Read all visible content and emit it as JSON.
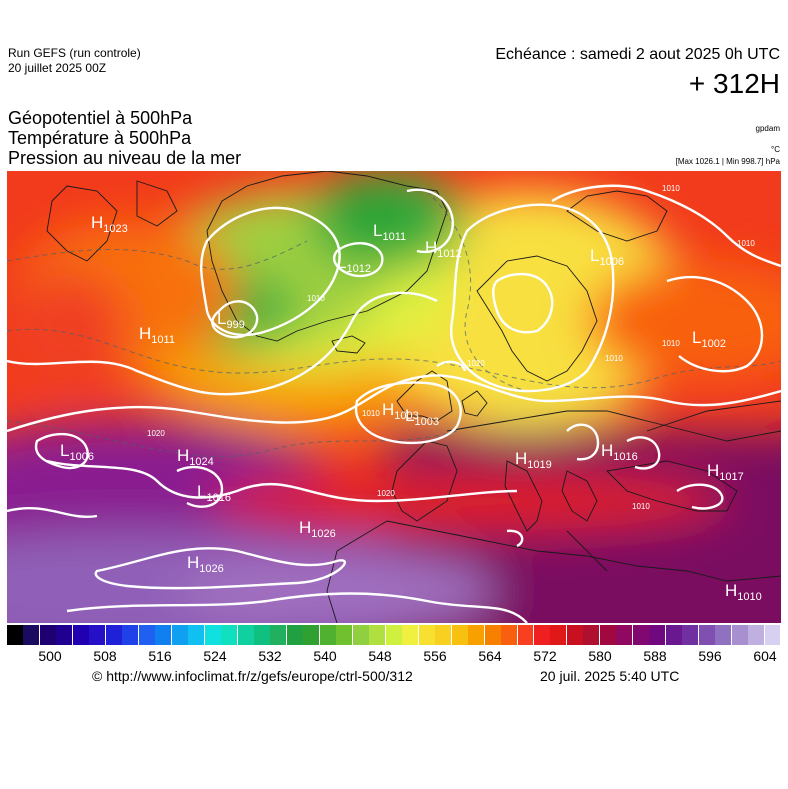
{
  "header": {
    "run_title": "Run GEFS (run controle)",
    "run_date": "20 juillet 2025 00Z",
    "valid_time": "Echéance : samedi 2 aout 2025 0h UTC",
    "lead_time": "+ 312H"
  },
  "params": [
    "Géopotentiel à 500hPa",
    "Température à 500hPa",
    "Pression au niveau de la mer"
  ],
  "units": {
    "geopotential": "gpdam",
    "temperature": "°C",
    "pressure": "[Max 1026.1 | Min 998.7] hPa"
  },
  "legend": {
    "colors": [
      "#000000",
      "#1a0a60",
      "#1e0070",
      "#1f0090",
      "#2000b0",
      "#2510c8",
      "#2020d8",
      "#2040e8",
      "#2060f0",
      "#1080f0",
      "#10a0f0",
      "#10c0f0",
      "#10e0e0",
      "#10e0c0",
      "#10d0a0",
      "#10c080",
      "#20b060",
      "#20a040",
      "#30a030",
      "#50b030",
      "#70c030",
      "#90d040",
      "#b0e040",
      "#d0f040",
      "#f0f040",
      "#f8e030",
      "#f8d020",
      "#f8c010",
      "#f8a000",
      "#f88000",
      "#f86010",
      "#f84020",
      "#f02020",
      "#e01818",
      "#c81020",
      "#b01030",
      "#a00840",
      "#900860",
      "#800870",
      "#700880",
      "#6a1890",
      "#7030a0",
      "#8050b0",
      "#9070c0",
      "#a890d0",
      "#c0b0e0",
      "#d8d0f0"
    ],
    "ticks": [
      "500",
      "508",
      "516",
      "524",
      "532",
      "540",
      "548",
      "556",
      "564",
      "572",
      "580",
      "588",
      "596",
      "604"
    ]
  },
  "pressure_centers": [
    {
      "type": "H",
      "value": "1023"
    },
    {
      "type": "L",
      "value": "1011"
    },
    {
      "type": "H",
      "value": "1012"
    },
    {
      "type": "L",
      "value": "1012"
    },
    {
      "type": "L",
      "value": "999"
    },
    {
      "type": "H",
      "value": "1011"
    },
    {
      "type": "L",
      "value": "1006"
    },
    {
      "type": "L",
      "value": "1002"
    },
    {
      "type": "H",
      "value": "1003"
    },
    {
      "type": "L",
      "value": "1003"
    },
    {
      "type": "L",
      "value": "1006"
    },
    {
      "type": "H",
      "value": "1024"
    },
    {
      "type": "L",
      "value": "1016"
    },
    {
      "type": "H",
      "value": "1019"
    },
    {
      "type": "H",
      "value": "1016"
    },
    {
      "type": "H",
      "value": "1017"
    },
    {
      "type": "H",
      "value": "1026"
    },
    {
      "type": "H",
      "value": "1026"
    },
    {
      "type": "H",
      "value": "1010"
    }
  ],
  "isobar_labels": [
    "1010",
    "1010",
    "1010",
    "1010",
    "1010",
    "1010",
    "1010",
    "1020",
    "1020",
    "1020"
  ],
  "footer": {
    "source": "© http://www.infoclimat.fr/z/gefs/europe/ctrl-500/312",
    "issued": "20 juil. 2025  5:40 UTC"
  }
}
